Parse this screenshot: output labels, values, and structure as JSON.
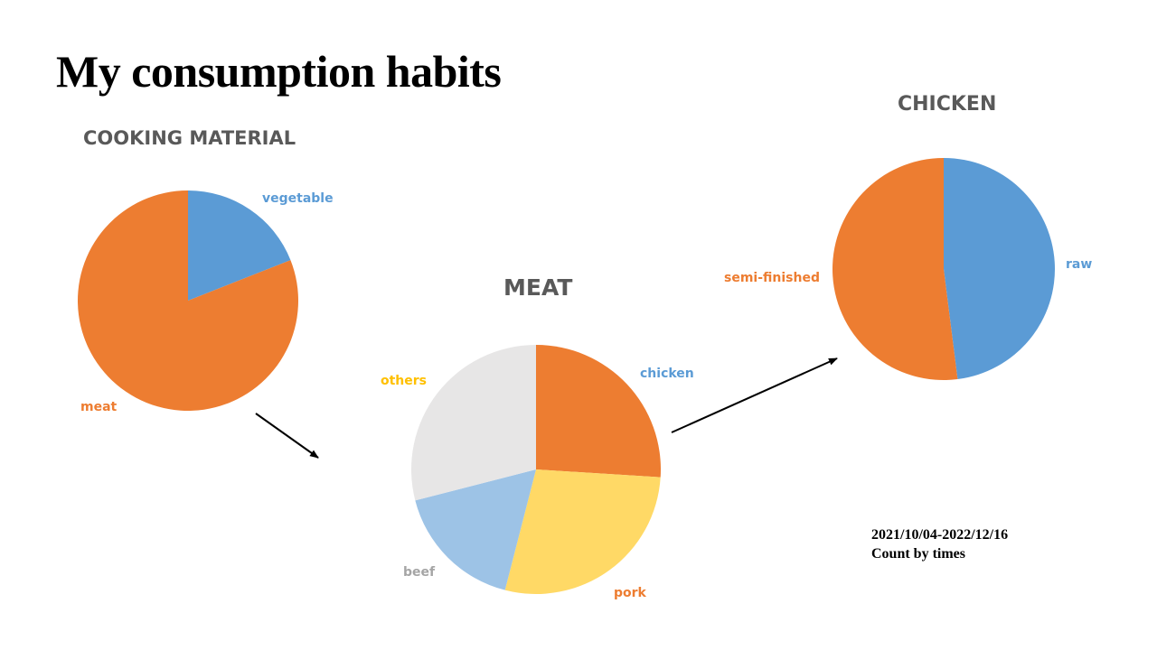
{
  "slide": {
    "title": "My consumption habits",
    "footnote": {
      "date_range": "2021/10/04-2022/12/16",
      "method": "Count by times"
    }
  },
  "colors": {
    "orange": "#ED7D31",
    "blue": "#5B9BD5",
    "light_blue": "#9DC3E6",
    "yellow": "#FFD966",
    "light_gray": "#E7E6E6",
    "gray_label": "#A5A5A5",
    "title_gray": "#595959",
    "others_label": "#FFC000"
  },
  "chart_data": [
    {
      "type": "pie",
      "title": "COOKING MATERIAL",
      "slices": [
        {
          "label": "vegetable",
          "value": 19,
          "color": "#5B9BD5",
          "label_color": "#5B9BD5"
        },
        {
          "label": "meat",
          "value": 81,
          "color": "#ED7D31",
          "label_color": "#ED7D31"
        }
      ]
    },
    {
      "type": "pie",
      "title": "MEAT",
      "slices": [
        {
          "label": "chicken",
          "value": 26,
          "color": "#ED7D31",
          "label_color": "#5B9BD5"
        },
        {
          "label": "pork",
          "value": 28,
          "color": "#FFD966",
          "label_color": "#ED7D31"
        },
        {
          "label": "beef",
          "value": 17,
          "color": "#9DC3E6",
          "label_color": "#A5A5A5"
        },
        {
          "label": "others",
          "value": 29,
          "color": "#E7E6E6",
          "label_color": "#FFC000"
        }
      ]
    },
    {
      "type": "pie",
      "title": "CHICKEN",
      "slices": [
        {
          "label": "raw",
          "value": 48,
          "color": "#5B9BD5",
          "label_color": "#5B9BD5"
        },
        {
          "label": "semi-finished",
          "value": 52,
          "color": "#ED7D31",
          "label_color": "#ED7D31"
        }
      ]
    }
  ]
}
